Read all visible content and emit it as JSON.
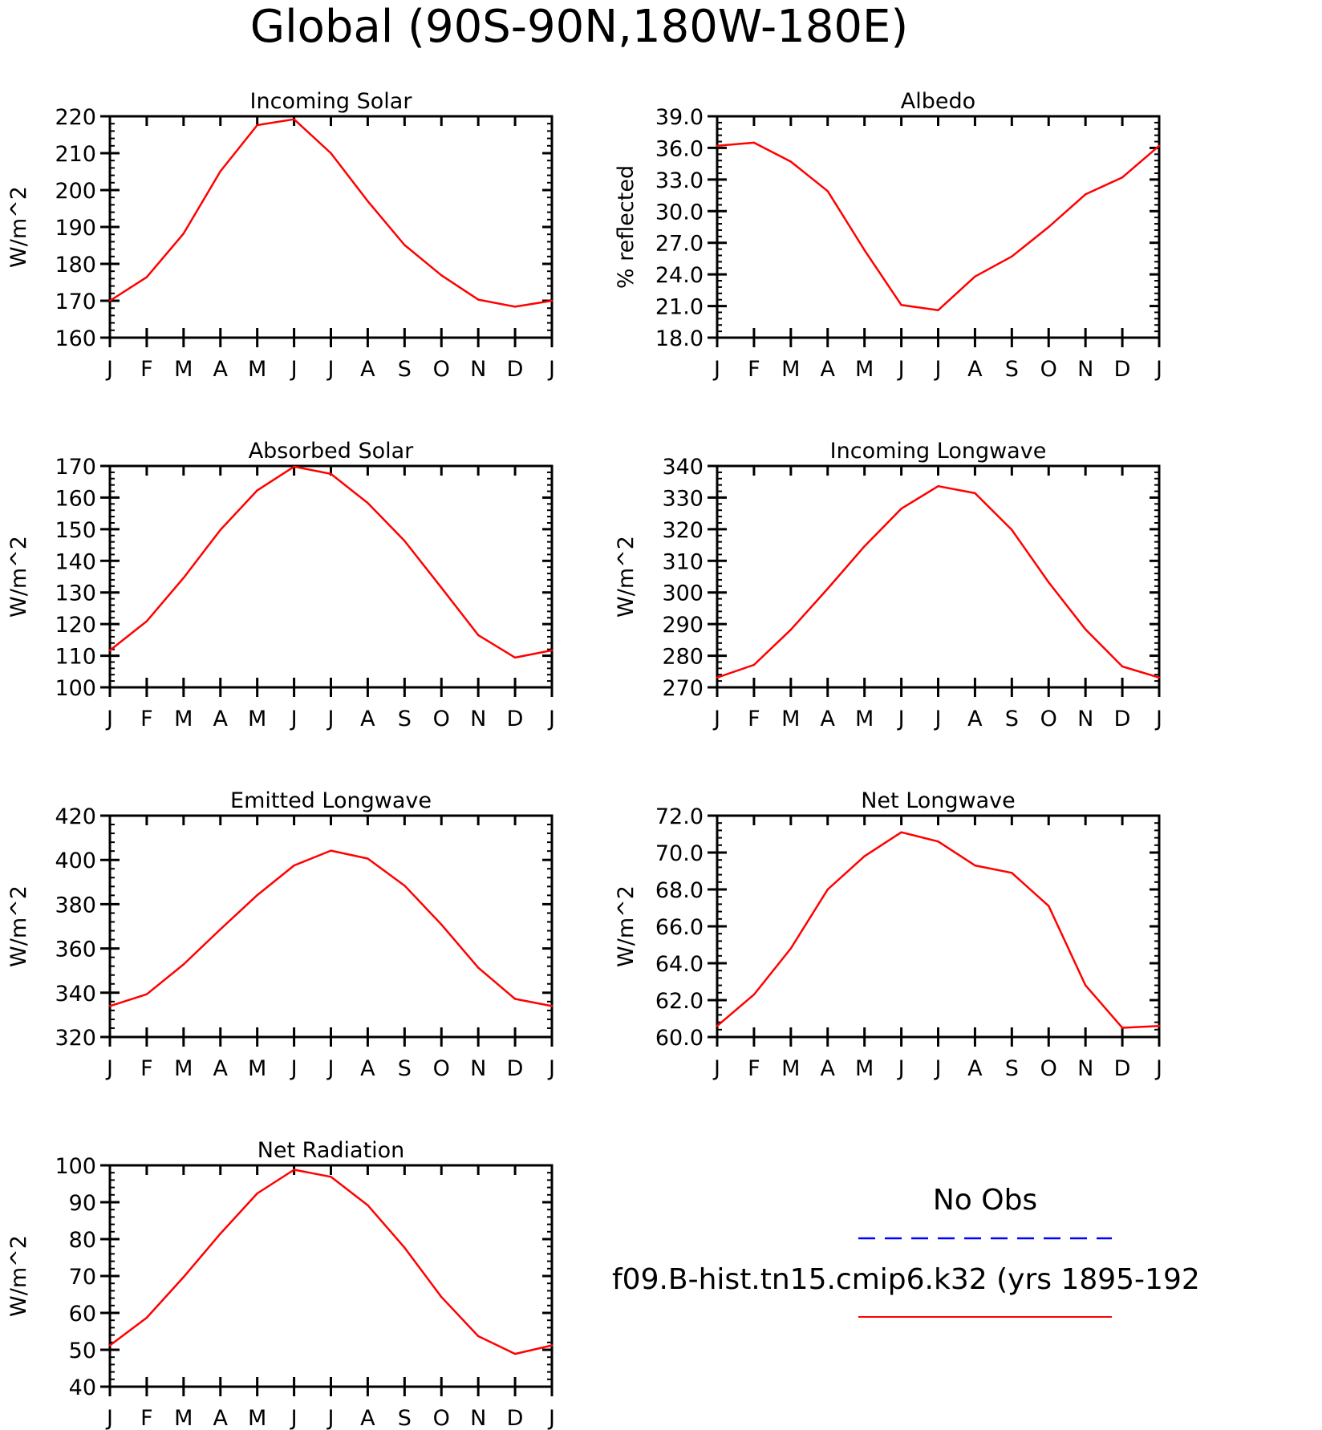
{
  "figure": {
    "title": "Global (90S-90N,180W-180E)"
  },
  "legend": {
    "items": [
      {
        "label": "No Obs",
        "color": "#0000ff",
        "style": "dashed"
      },
      {
        "label": "f09.B-hist.tn15.cmip6.k32 (yrs 1895-192",
        "color": "#ff0000",
        "style": "solid"
      }
    ]
  },
  "chart_data": [
    {
      "type": "line",
      "title": "Incoming Solar",
      "ylabel": "W/m^2",
      "categories": [
        "J",
        "F",
        "M",
        "A",
        "M",
        "J",
        "J",
        "A",
        "S",
        "O",
        "N",
        "D",
        "J"
      ],
      "ylim": [
        160,
        220
      ],
      "yticks": [
        "160",
        "170",
        "180",
        "190",
        "200",
        "210",
        "220"
      ],
      "series": [
        {
          "color": "#ff0000",
          "values": [
            170,
            176.4,
            188.2,
            205.1,
            217.6,
            219.2,
            210,
            197,
            185.1,
            176.9,
            170.3,
            168.4,
            170
          ]
        }
      ]
    },
    {
      "type": "line",
      "title": "Albedo",
      "ylabel": "% reflected",
      "categories": [
        "J",
        "F",
        "M",
        "A",
        "M",
        "J",
        "J",
        "A",
        "S",
        "O",
        "N",
        "D",
        "J"
      ],
      "ylim": [
        18,
        39
      ],
      "yticks": [
        "18.0",
        "21.0",
        "24.0",
        "27.0",
        "30.0",
        "33.0",
        "36.0",
        "39.0"
      ],
      "series": [
        {
          "color": "#ff0000",
          "values": [
            36.2,
            36.5,
            34.7,
            31.9,
            26.3,
            21.1,
            20.6,
            23.8,
            25.7,
            28.5,
            31.6,
            33.2,
            36.2
          ]
        }
      ]
    },
    {
      "type": "line",
      "title": "Absorbed Solar",
      "ylabel": "W/m^2",
      "categories": [
        "J",
        "F",
        "M",
        "A",
        "M",
        "J",
        "J",
        "A",
        "S",
        "O",
        "N",
        "D",
        "J"
      ],
      "ylim": [
        100,
        170
      ],
      "yticks": [
        "100",
        "110",
        "120",
        "130",
        "140",
        "150",
        "160",
        "170"
      ],
      "series": [
        {
          "color": "#ff0000",
          "values": [
            111.7,
            120.9,
            134.6,
            149.8,
            162.3,
            169.8,
            167.5,
            158.3,
            146.3,
            131.5,
            116.5,
            109.4,
            111.7
          ]
        }
      ]
    },
    {
      "type": "line",
      "title": "Incoming Longwave",
      "ylabel": "W/m^2",
      "categories": [
        "J",
        "F",
        "M",
        "A",
        "M",
        "J",
        "J",
        "A",
        "S",
        "O",
        "N",
        "D",
        "J"
      ],
      "ylim": [
        270,
        340
      ],
      "yticks": [
        "270",
        "280",
        "290",
        "300",
        "310",
        "320",
        "330",
        "340"
      ],
      "series": [
        {
          "color": "#ff0000",
          "values": [
            273.1,
            277.1,
            288.2,
            301.2,
            314.6,
            326.5,
            333.6,
            331.4,
            319.8,
            303.2,
            288.3,
            276.6,
            273.1
          ]
        }
      ]
    },
    {
      "type": "line",
      "title": "Emitted Longwave",
      "ylabel": "W/m^2",
      "categories": [
        "J",
        "F",
        "M",
        "A",
        "M",
        "J",
        "J",
        "A",
        "S",
        "O",
        "N",
        "D",
        "J"
      ],
      "ylim": [
        320,
        420
      ],
      "yticks": [
        "320",
        "340",
        "360",
        "380",
        "400",
        "420"
      ],
      "series": [
        {
          "color": "#ff0000",
          "values": [
            334,
            339.3,
            352.8,
            368.7,
            384.1,
            397.5,
            404.2,
            400.6,
            388.4,
            370.8,
            351.3,
            337.2,
            334
          ]
        }
      ]
    },
    {
      "type": "line",
      "title": "Net Longwave",
      "ylabel": "W/m^2",
      "categories": [
        "J",
        "F",
        "M",
        "A",
        "M",
        "J",
        "J",
        "A",
        "S",
        "O",
        "N",
        "D",
        "J"
      ],
      "ylim": [
        60,
        72
      ],
      "yticks": [
        "60.0",
        "62.0",
        "64.0",
        "66.0",
        "68.0",
        "70.0",
        "72.0"
      ],
      "series": [
        {
          "color": "#ff0000",
          "values": [
            60.6,
            62.3,
            64.8,
            68,
            69.8,
            71.1,
            70.6,
            69.3,
            68.9,
            67.1,
            62.8,
            60.5,
            60.6
          ]
        }
      ]
    },
    {
      "type": "line",
      "title": "Net Radiation",
      "ylabel": "W/m^2",
      "categories": [
        "J",
        "F",
        "M",
        "A",
        "M",
        "J",
        "J",
        "A",
        "S",
        "O",
        "N",
        "D",
        "J"
      ],
      "ylim": [
        40,
        100
      ],
      "yticks": [
        "40",
        "50",
        "60",
        "70",
        "80",
        "90",
        "100"
      ],
      "series": [
        {
          "color": "#ff0000",
          "values": [
            51.2,
            58.7,
            69.7,
            81.5,
            92.4,
            98.8,
            96.9,
            89.2,
            77.7,
            64.3,
            53.7,
            48.9,
            51.2
          ]
        }
      ]
    }
  ]
}
